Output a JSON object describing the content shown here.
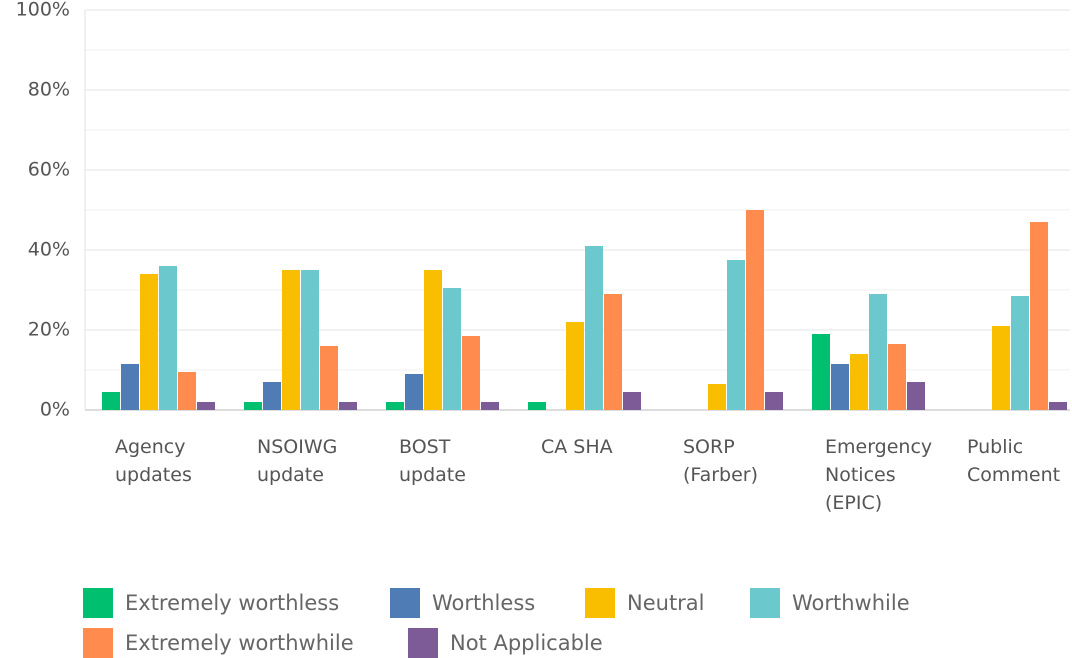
{
  "chart_data": {
    "type": "bar",
    "categories": [
      "Agency updates",
      "NSOIWG update",
      "BOST update",
      "CA SHA",
      "SORP (Farber)",
      "Emergency Notices (EPIC)",
      "Public Comment"
    ],
    "series": [
      {
        "name": "Extremely worthless",
        "color": "#00bf6f",
        "values": [
          4.5,
          2,
          2,
          2,
          0,
          19,
          0
        ]
      },
      {
        "name": "Worthless",
        "color": "#507cb6",
        "values": [
          11.5,
          7,
          9,
          0,
          0,
          11.5,
          0
        ]
      },
      {
        "name": "Neutral",
        "color": "#f9be00",
        "values": [
          34,
          35,
          35,
          22,
          6.5,
          14,
          21
        ]
      },
      {
        "name": "Worthwhile",
        "color": "#6bc8cd",
        "values": [
          36,
          35,
          30.5,
          41,
          37.5,
          29,
          28.5
        ]
      },
      {
        "name": "Extremely worthwhile",
        "color": "#ff8b4f",
        "values": [
          9.5,
          16,
          18.5,
          29,
          50,
          16.5,
          47
        ]
      },
      {
        "name": "Not Applicable",
        "color": "#7d5b96",
        "values": [
          2,
          2,
          2,
          4.5,
          4.5,
          7,
          2
        ]
      }
    ],
    "ylim": [
      0,
      100
    ],
    "yticks": [
      {
        "value": 0,
        "label": "0%"
      },
      {
        "value": 20,
        "label": "20%"
      },
      {
        "value": 40,
        "label": "40%"
      },
      {
        "value": 60,
        "label": "60%"
      },
      {
        "value": 80,
        "label": "80%"
      },
      {
        "value": 100,
        "label": "100%"
      }
    ],
    "minor_yticks": [
      10,
      30,
      50,
      70,
      90
    ],
    "grid": true,
    "legend": "bottom"
  }
}
